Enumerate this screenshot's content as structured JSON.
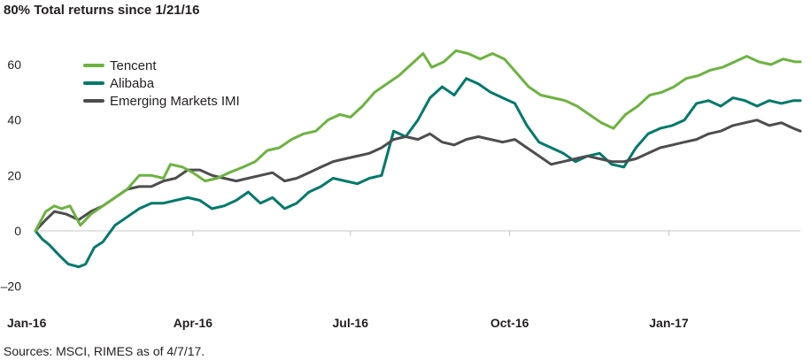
{
  "chart_data": {
    "type": "line",
    "title": "80% Total returns since 1/21/16",
    "source": "Sources: MSCI, RIMES as of 4/7/17.",
    "xlabel": "",
    "ylabel": "",
    "x_range": [
      "2016-01-21",
      "2017-04-07"
    ],
    "ylim": [
      -20,
      80
    ],
    "y_ticks": [
      {
        "value": 60,
        "label": "60"
      },
      {
        "value": 40,
        "label": "40"
      },
      {
        "value": 20,
        "label": "20"
      },
      {
        "value": 0,
        "label": "0"
      },
      {
        "value": -20,
        "label": "–20"
      }
    ],
    "x_ticks": [
      {
        "date": "2016-01-21",
        "label": "Jan-16"
      },
      {
        "date": "2016-04-21",
        "label": "Apr-16"
      },
      {
        "date": "2016-07-21",
        "label": "Jul-16"
      },
      {
        "date": "2016-10-21",
        "label": "Oct-16"
      },
      {
        "date": "2017-01-21",
        "label": "Jan-17"
      }
    ],
    "grid": false,
    "zero_line": true,
    "legend_position": "top-left",
    "series": [
      {
        "name": "Tencent",
        "color": "#6cb33f",
        "points": [
          [
            "2016-01-21",
            0
          ],
          [
            "2016-01-27",
            7
          ],
          [
            "2016-02-01",
            9
          ],
          [
            "2016-02-05",
            8
          ],
          [
            "2016-02-10",
            9
          ],
          [
            "2016-02-16",
            2
          ],
          [
            "2016-02-22",
            6
          ],
          [
            "2016-02-29",
            9
          ],
          [
            "2016-03-07",
            12
          ],
          [
            "2016-03-14",
            15
          ],
          [
            "2016-03-21",
            20
          ],
          [
            "2016-03-28",
            20
          ],
          [
            "2016-04-04",
            19
          ],
          [
            "2016-04-08",
            24
          ],
          [
            "2016-04-15",
            23
          ],
          [
            "2016-04-21",
            21
          ],
          [
            "2016-04-28",
            18
          ],
          [
            "2016-05-05",
            19
          ],
          [
            "2016-05-12",
            21
          ],
          [
            "2016-05-20",
            23
          ],
          [
            "2016-05-27",
            25
          ],
          [
            "2016-06-03",
            29
          ],
          [
            "2016-06-10",
            30
          ],
          [
            "2016-06-17",
            33
          ],
          [
            "2016-06-24",
            35
          ],
          [
            "2016-07-01",
            36
          ],
          [
            "2016-07-08",
            40
          ],
          [
            "2016-07-15",
            42
          ],
          [
            "2016-07-21",
            41
          ],
          [
            "2016-07-28",
            45
          ],
          [
            "2016-08-04",
            50
          ],
          [
            "2016-08-11",
            53
          ],
          [
            "2016-08-18",
            56
          ],
          [
            "2016-08-25",
            60
          ],
          [
            "2016-09-01",
            64
          ],
          [
            "2016-09-06",
            59
          ],
          [
            "2016-09-13",
            61
          ],
          [
            "2016-09-20",
            65
          ],
          [
            "2016-09-27",
            64
          ],
          [
            "2016-10-04",
            62
          ],
          [
            "2016-10-11",
            64
          ],
          [
            "2016-10-18",
            62
          ],
          [
            "2016-10-25",
            57
          ],
          [
            "2016-11-01",
            52
          ],
          [
            "2016-11-08",
            49
          ],
          [
            "2016-11-15",
            48
          ],
          [
            "2016-11-22",
            47
          ],
          [
            "2016-11-29",
            45
          ],
          [
            "2016-12-06",
            42
          ],
          [
            "2016-12-13",
            39
          ],
          [
            "2016-12-20",
            37
          ],
          [
            "2016-12-27",
            42
          ],
          [
            "2017-01-03",
            45
          ],
          [
            "2017-01-10",
            49
          ],
          [
            "2017-01-17",
            50
          ],
          [
            "2017-01-24",
            52
          ],
          [
            "2017-01-31",
            55
          ],
          [
            "2017-02-07",
            56
          ],
          [
            "2017-02-14",
            58
          ],
          [
            "2017-02-21",
            59
          ],
          [
            "2017-02-28",
            61
          ],
          [
            "2017-03-07",
            63
          ],
          [
            "2017-03-14",
            61
          ],
          [
            "2017-03-21",
            60
          ],
          [
            "2017-03-28",
            62
          ],
          [
            "2017-04-04",
            61
          ],
          [
            "2017-04-07",
            61
          ]
        ]
      },
      {
        "name": "Alibaba",
        "color": "#00796b",
        "points": [
          [
            "2016-01-21",
            0
          ],
          [
            "2016-01-25",
            -3
          ],
          [
            "2016-01-29",
            -5
          ],
          [
            "2016-02-04",
            -9
          ],
          [
            "2016-02-09",
            -12
          ],
          [
            "2016-02-15",
            -13
          ],
          [
            "2016-02-19",
            -12
          ],
          [
            "2016-02-24",
            -6
          ],
          [
            "2016-02-29",
            -4
          ],
          [
            "2016-03-07",
            2
          ],
          [
            "2016-03-14",
            5
          ],
          [
            "2016-03-21",
            8
          ],
          [
            "2016-03-28",
            10
          ],
          [
            "2016-04-04",
            10
          ],
          [
            "2016-04-11",
            11
          ],
          [
            "2016-04-18",
            12
          ],
          [
            "2016-04-25",
            11
          ],
          [
            "2016-05-02",
            8
          ],
          [
            "2016-05-09",
            9
          ],
          [
            "2016-05-16",
            11
          ],
          [
            "2016-05-23",
            14
          ],
          [
            "2016-05-30",
            10
          ],
          [
            "2016-06-06",
            12
          ],
          [
            "2016-06-13",
            8
          ],
          [
            "2016-06-20",
            10
          ],
          [
            "2016-06-27",
            14
          ],
          [
            "2016-07-04",
            16
          ],
          [
            "2016-07-11",
            19
          ],
          [
            "2016-07-18",
            18
          ],
          [
            "2016-07-25",
            17
          ],
          [
            "2016-08-01",
            19
          ],
          [
            "2016-08-08",
            20
          ],
          [
            "2016-08-15",
            36
          ],
          [
            "2016-08-22",
            34
          ],
          [
            "2016-08-29",
            40
          ],
          [
            "2016-09-05",
            48
          ],
          [
            "2016-09-12",
            52
          ],
          [
            "2016-09-19",
            49
          ],
          [
            "2016-09-26",
            55
          ],
          [
            "2016-10-03",
            53
          ],
          [
            "2016-10-10",
            50
          ],
          [
            "2016-10-17",
            48
          ],
          [
            "2016-10-24",
            46
          ],
          [
            "2016-10-31",
            38
          ],
          [
            "2016-11-07",
            32
          ],
          [
            "2016-11-14",
            30
          ],
          [
            "2016-11-21",
            28
          ],
          [
            "2016-11-28",
            25
          ],
          [
            "2016-12-05",
            27
          ],
          [
            "2016-12-12",
            28
          ],
          [
            "2016-12-19",
            24
          ],
          [
            "2016-12-26",
            23
          ],
          [
            "2017-01-02",
            30
          ],
          [
            "2017-01-09",
            35
          ],
          [
            "2017-01-16",
            37
          ],
          [
            "2017-01-23",
            38
          ],
          [
            "2017-01-30",
            40
          ],
          [
            "2017-02-06",
            46
          ],
          [
            "2017-02-13",
            47
          ],
          [
            "2017-02-20",
            45
          ],
          [
            "2017-02-27",
            48
          ],
          [
            "2017-03-06",
            47
          ],
          [
            "2017-03-13",
            45
          ],
          [
            "2017-03-20",
            47
          ],
          [
            "2017-03-27",
            46
          ],
          [
            "2017-04-03",
            47
          ],
          [
            "2017-04-07",
            47
          ]
        ]
      },
      {
        "name": "Emerging Markets IMI",
        "color": "#4d4d4f",
        "points": [
          [
            "2016-01-21",
            0
          ],
          [
            "2016-01-27",
            4
          ],
          [
            "2016-02-01",
            7
          ],
          [
            "2016-02-08",
            6
          ],
          [
            "2016-02-15",
            4
          ],
          [
            "2016-02-22",
            7
          ],
          [
            "2016-02-29",
            9
          ],
          [
            "2016-03-07",
            12
          ],
          [
            "2016-03-14",
            15
          ],
          [
            "2016-03-21",
            16
          ],
          [
            "2016-03-28",
            16
          ],
          [
            "2016-04-04",
            18
          ],
          [
            "2016-04-11",
            19
          ],
          [
            "2016-04-18",
            22
          ],
          [
            "2016-04-25",
            22
          ],
          [
            "2016-05-02",
            20
          ],
          [
            "2016-05-09",
            19
          ],
          [
            "2016-05-16",
            18
          ],
          [
            "2016-05-23",
            19
          ],
          [
            "2016-05-30",
            20
          ],
          [
            "2016-06-06",
            21
          ],
          [
            "2016-06-13",
            18
          ],
          [
            "2016-06-20",
            19
          ],
          [
            "2016-06-27",
            21
          ],
          [
            "2016-07-04",
            23
          ],
          [
            "2016-07-11",
            25
          ],
          [
            "2016-07-18",
            26
          ],
          [
            "2016-07-25",
            27
          ],
          [
            "2016-08-01",
            28
          ],
          [
            "2016-08-08",
            30
          ],
          [
            "2016-08-15",
            33
          ],
          [
            "2016-08-22",
            34
          ],
          [
            "2016-08-29",
            33
          ],
          [
            "2016-09-05",
            35
          ],
          [
            "2016-09-12",
            32
          ],
          [
            "2016-09-19",
            31
          ],
          [
            "2016-09-26",
            33
          ],
          [
            "2016-10-03",
            34
          ],
          [
            "2016-10-10",
            33
          ],
          [
            "2016-10-17",
            32
          ],
          [
            "2016-10-24",
            33
          ],
          [
            "2016-10-31",
            30
          ],
          [
            "2016-11-07",
            27
          ],
          [
            "2016-11-14",
            24
          ],
          [
            "2016-11-21",
            25
          ],
          [
            "2016-11-28",
            26
          ],
          [
            "2016-12-05",
            27
          ],
          [
            "2016-12-12",
            26
          ],
          [
            "2016-12-19",
            25
          ],
          [
            "2016-12-26",
            25
          ],
          [
            "2017-01-02",
            26
          ],
          [
            "2017-01-09",
            28
          ],
          [
            "2017-01-16",
            30
          ],
          [
            "2017-01-23",
            31
          ],
          [
            "2017-01-30",
            32
          ],
          [
            "2017-02-06",
            33
          ],
          [
            "2017-02-13",
            35
          ],
          [
            "2017-02-20",
            36
          ],
          [
            "2017-02-27",
            38
          ],
          [
            "2017-03-06",
            39
          ],
          [
            "2017-03-13",
            40
          ],
          [
            "2017-03-20",
            38
          ],
          [
            "2017-03-27",
            39
          ],
          [
            "2017-04-03",
            37
          ],
          [
            "2017-04-07",
            36
          ]
        ]
      }
    ]
  }
}
